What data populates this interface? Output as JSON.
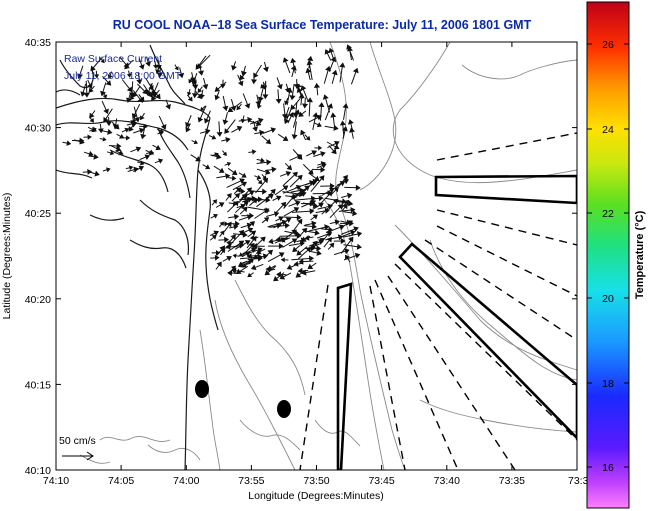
{
  "title": "RU COOL  NOAA–18  Sea Surface Temperature:  July 11, 2006 1801 GMT",
  "overlay": {
    "line1": "Raw Surface Current",
    "line2": "July 11, 2006 18:00 GMT"
  },
  "scale_bar_label": "50 cm/s",
  "x_axis": {
    "label": "Longitude (Degrees:Minutes)",
    "ticks": [
      "74:10",
      "74:05",
      "74:00",
      "73:55",
      "73:50",
      "73:45",
      "73:40",
      "73:35",
      "73:3"
    ]
  },
  "y_axis": {
    "label": "Latitude (Degrees:Minutes)",
    "ticks": [
      "40:35",
      "40:30",
      "40:25",
      "40:20",
      "40:15",
      "40:10"
    ]
  },
  "colorbar": {
    "label": "Temperature (°C)",
    "ticks": [
      "26",
      "24",
      "22",
      "20",
      "18",
      "16"
    ]
  }
}
